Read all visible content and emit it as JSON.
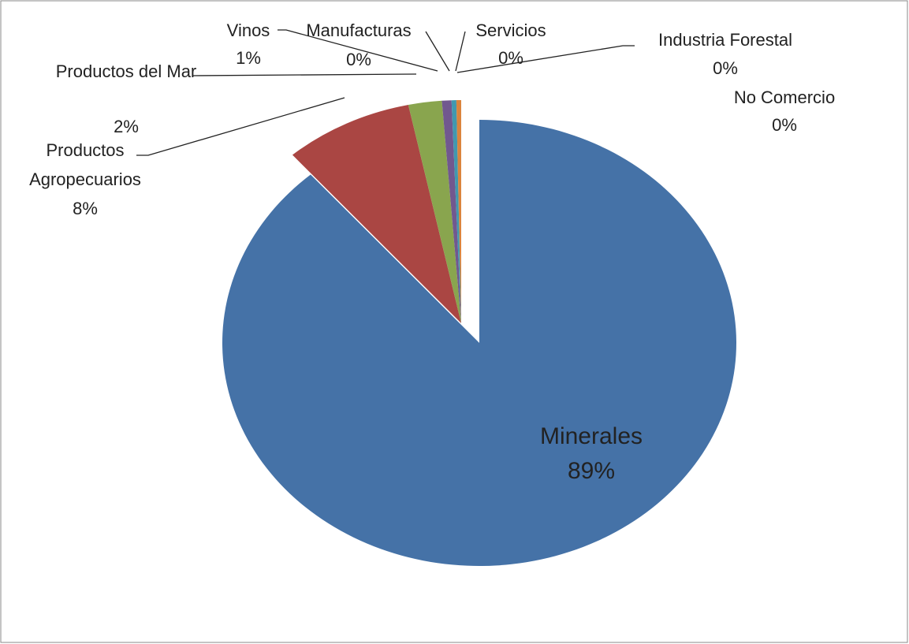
{
  "chart_data": {
    "type": "pie",
    "categories": [
      "Minerales",
      "Productos Agropecuarios",
      "Productos del Mar",
      "Vinos",
      "Manufacturas",
      "Servicios",
      "Industria Forestal",
      "No Comercio"
    ],
    "values": [
      88.6,
      8.1,
      2.1,
      0.6,
      0.3,
      0.3,
      0,
      0
    ],
    "value_labels": [
      "89%",
      "8%",
      "2%",
      "1%",
      "0%",
      "0%",
      "0%",
      "0%"
    ],
    "colors": [
      "#4572a7",
      "#aa4643",
      "#89a54e",
      "#71588f",
      "#4198af",
      "#db843d",
      "#93a9cf",
      "#d19392"
    ]
  }
}
